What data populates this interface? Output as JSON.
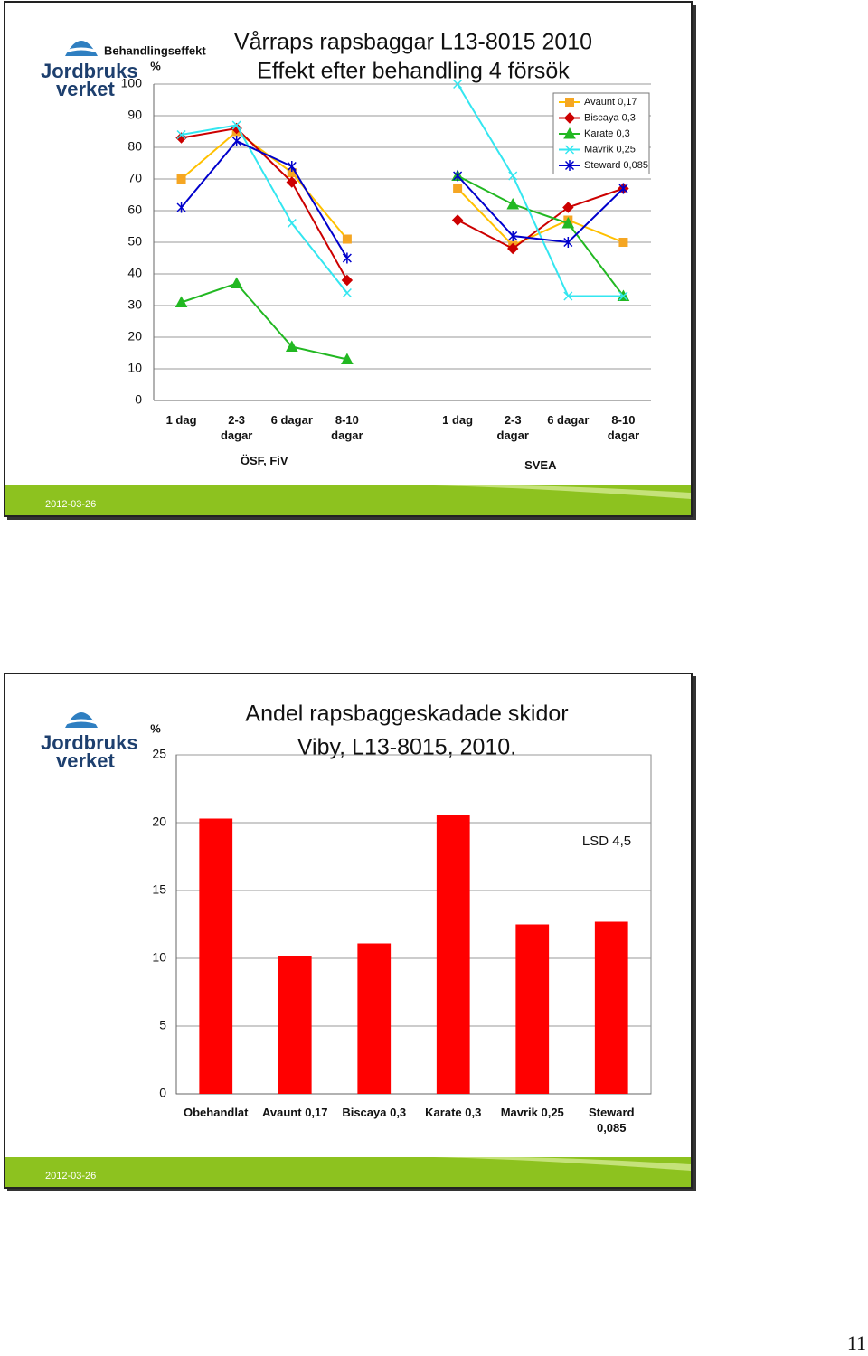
{
  "logo": {
    "line1": "Jordbruks",
    "line2": "verket"
  },
  "slides": [
    {
      "date": "2012-03-26"
    },
    {
      "date": "2012-03-26"
    }
  ],
  "page_number": 11,
  "chart_data": [
    {
      "type": "line",
      "title": "Vårraps rapsbaggar L13-8015 2010",
      "subtitle": "Effekt efter behandling 4 försök",
      "y_title": "Behandlingseffekt",
      "y_unit": "%",
      "categories": [
        "1 dag",
        "2-3 dagar",
        "6 dagar",
        "8-10 dagar",
        null,
        "1 dag",
        "2-3 dagar",
        "6 dagar",
        "8-10 dagar"
      ],
      "groups": [
        "ÖSF, FiV",
        "SVEA"
      ],
      "series": [
        {
          "name": "Avaunt 0,17",
          "color": "#f5a623",
          "line_color": "#ffc000",
          "marker": "square",
          "values": [
            70,
            85,
            72,
            51,
            null,
            67,
            49,
            57,
            50
          ]
        },
        {
          "name": "Biscaya 0,3",
          "color": "#cc0000",
          "line_color": "#cc0000",
          "marker": "diamond",
          "values": [
            83,
            86,
            69,
            38,
            null,
            57,
            48,
            61,
            67
          ]
        },
        {
          "name": "Karate 0,3",
          "color": "#22b822",
          "line_color": "#22b822",
          "marker": "triangle",
          "values": [
            31,
            37,
            17,
            13,
            null,
            71,
            62,
            56,
            33
          ]
        },
        {
          "name": "Mavrik 0,25",
          "color": "#33e6f0",
          "line_color": "#33e6f0",
          "marker": "x",
          "values": [
            84,
            87,
            56,
            34,
            null,
            100,
            71,
            33,
            33
          ]
        },
        {
          "name": "Steward 0,085",
          "color": "#0000cc",
          "line_color": "#0000cc",
          "marker": "asterisk",
          "values": [
            61,
            82,
            74,
            45,
            null,
            71,
            52,
            50,
            67
          ]
        }
      ],
      "ylim": [
        0,
        100
      ],
      "yticks": [
        0,
        10,
        20,
        30,
        40,
        50,
        60,
        70,
        80,
        90,
        100
      ],
      "grid": true,
      "legend": "top-right"
    },
    {
      "type": "bar",
      "title": "Andel rapsbaggeskadade skidor",
      "subtitle": "Viby, L13-8015, 2010.",
      "y_unit": "%",
      "categories": [
        "Obehandlat",
        "Avaunt 0,17",
        "Biscaya 0,3",
        "Karate 0,3",
        "Mavrik 0,25",
        "Steward 0,085"
      ],
      "values": [
        20.3,
        10.2,
        11.1,
        20.6,
        12.5,
        12.7
      ],
      "color": "#ff0000",
      "annotation": "LSD 4,5",
      "ylim": [
        0,
        25
      ],
      "yticks": [
        0,
        5,
        10,
        15,
        20,
        25
      ],
      "grid": true
    }
  ]
}
